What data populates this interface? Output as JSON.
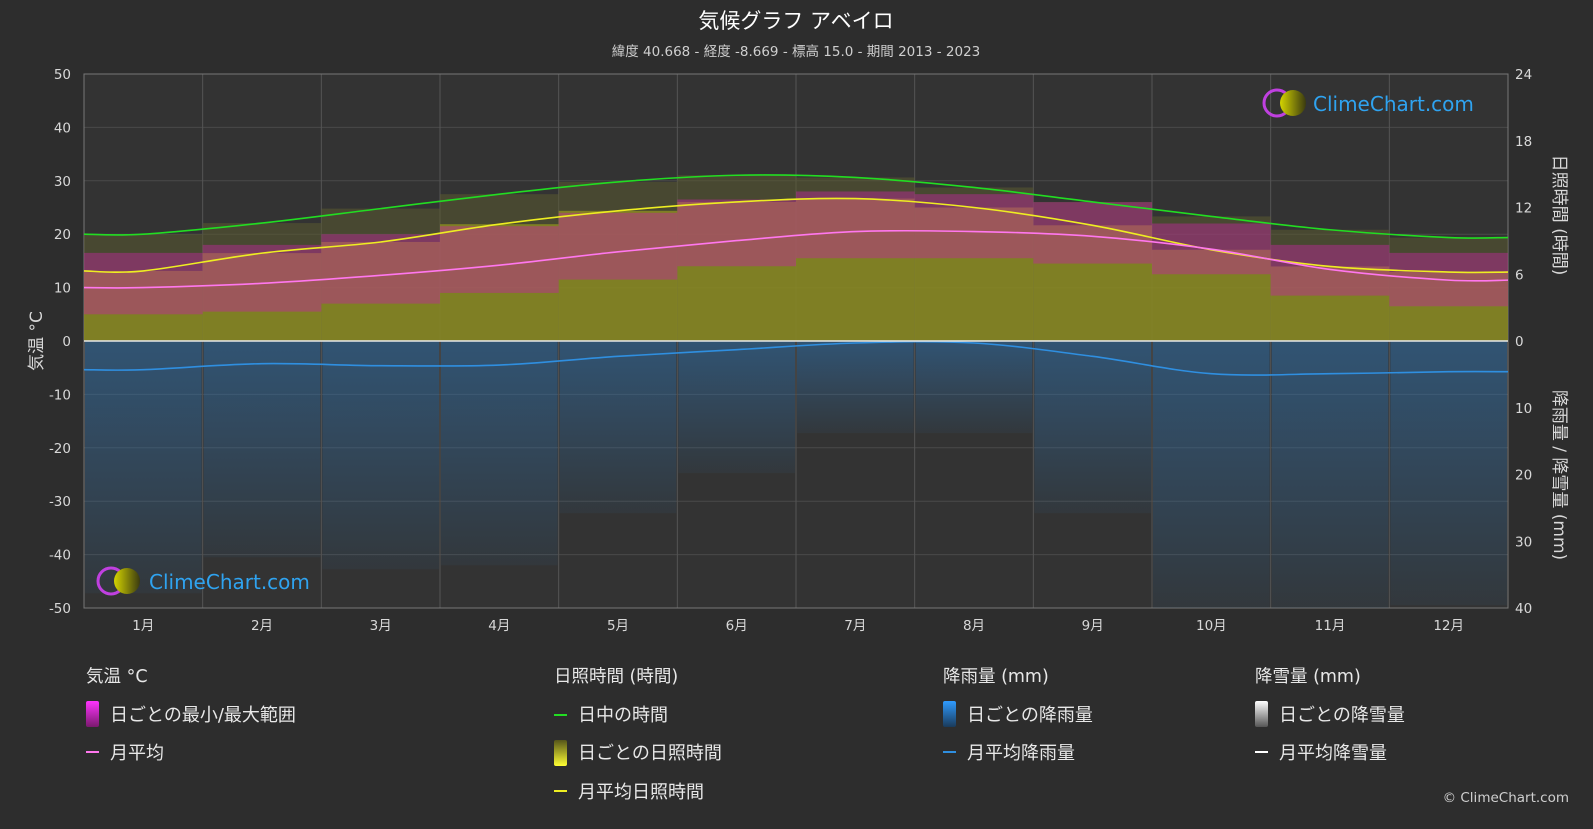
{
  "header": {
    "title": "気候グラフ アベイロ",
    "subtitle": "緯度 40.668 - 経度 -8.669 - 標高 15.0 - 期間 2013 - 2023"
  },
  "axes": {
    "left_title": "気温 °C",
    "right_top_title": "日照時間 (時間)",
    "right_bottom_title": "降雨量 / 降雪量 (mm)"
  },
  "logo": {
    "text": "ClimeChart.com"
  },
  "copyright": "© ClimeChart.com",
  "legend": {
    "temperature": {
      "heading": "気温 °C",
      "range": "日ごとの最小/最大範囲",
      "avg": "月平均"
    },
    "sunshine": {
      "heading": "日照時間 (時間)",
      "daylight": "日中の時間",
      "daily": "日ごとの日照時間",
      "avg": "月平均日照時間"
    },
    "rain": {
      "heading": "降雨量 (mm)",
      "daily": "日ごとの降雨量",
      "avg": "月平均降雨量"
    },
    "snow": {
      "heading": "降雪量 (mm)",
      "daily": "日ごとの降雪量",
      "avg": "月平均降雪量"
    }
  },
  "colors": {
    "background": "#2d2d2d",
    "daylight": "#22dd22",
    "sunshine": "#eeee22",
    "temp_avg": "#ff77ee",
    "temp_range": "#d020b0",
    "rain": "#2f8fe0",
    "snow": "#ffffff"
  },
  "chart_data": {
    "type": "line",
    "categories": [
      "1月",
      "2月",
      "3月",
      "4月",
      "5月",
      "6月",
      "7月",
      "8月",
      "9月",
      "10月",
      "11月",
      "12月"
    ],
    "y_left": {
      "label": "気温 °C",
      "ticks": [
        50,
        40,
        30,
        20,
        10,
        0,
        -10,
        -20,
        -30,
        -40,
        -50
      ],
      "range": [
        -50,
        50
      ]
    },
    "y_right_top": {
      "label": "日照時間 (時間)",
      "ticks": [
        24,
        18,
        12,
        6,
        0
      ],
      "range": [
        0,
        24
      ]
    },
    "y_right_bottom": {
      "label": "降雨量 / 降雪量 (mm)",
      "ticks": [
        0,
        10,
        20,
        30,
        40
      ],
      "range": [
        0,
        40
      ]
    },
    "series": [
      {
        "name": "日中の時間",
        "unit": "hours",
        "values": [
          9.6,
          10.6,
          11.9,
          13.2,
          14.3,
          14.9,
          14.7,
          13.8,
          12.5,
          11.2,
          10.0,
          9.3
        ]
      },
      {
        "name": "月平均日照時間",
        "unit": "hours",
        "values": [
          6.3,
          7.9,
          8.9,
          10.5,
          11.7,
          12.5,
          12.8,
          12.0,
          10.4,
          8.2,
          6.7,
          6.2
        ]
      },
      {
        "name": "月平均",
        "unit": "°C",
        "values": [
          10.0,
          10.8,
          12.3,
          14.2,
          16.7,
          18.8,
          20.5,
          20.5,
          19.6,
          17.2,
          13.4,
          11.4
        ]
      },
      {
        "name": "日ごとの最小/最大範囲",
        "unit": "°C",
        "min": [
          5,
          5.5,
          7,
          9,
          11.5,
          14,
          15.5,
          15.5,
          14.5,
          12.5,
          8.5,
          6.5
        ],
        "max": [
          16.5,
          18,
          20,
          21.5,
          24,
          26.5,
          28,
          27.5,
          26,
          22,
          18,
          16.5
        ]
      },
      {
        "name": "月平均降雨量",
        "unit": "mm",
        "values": [
          4.3,
          3.4,
          3.7,
          3.6,
          2.3,
          1.3,
          0.3,
          0.3,
          2.3,
          4.9,
          4.9,
          4.6
        ]
      },
      {
        "name": "月平均降雪量",
        "unit": "mm",
        "values": [
          0,
          0,
          0,
          0,
          0,
          0,
          0,
          0,
          0,
          0,
          0,
          0
        ]
      }
    ]
  }
}
